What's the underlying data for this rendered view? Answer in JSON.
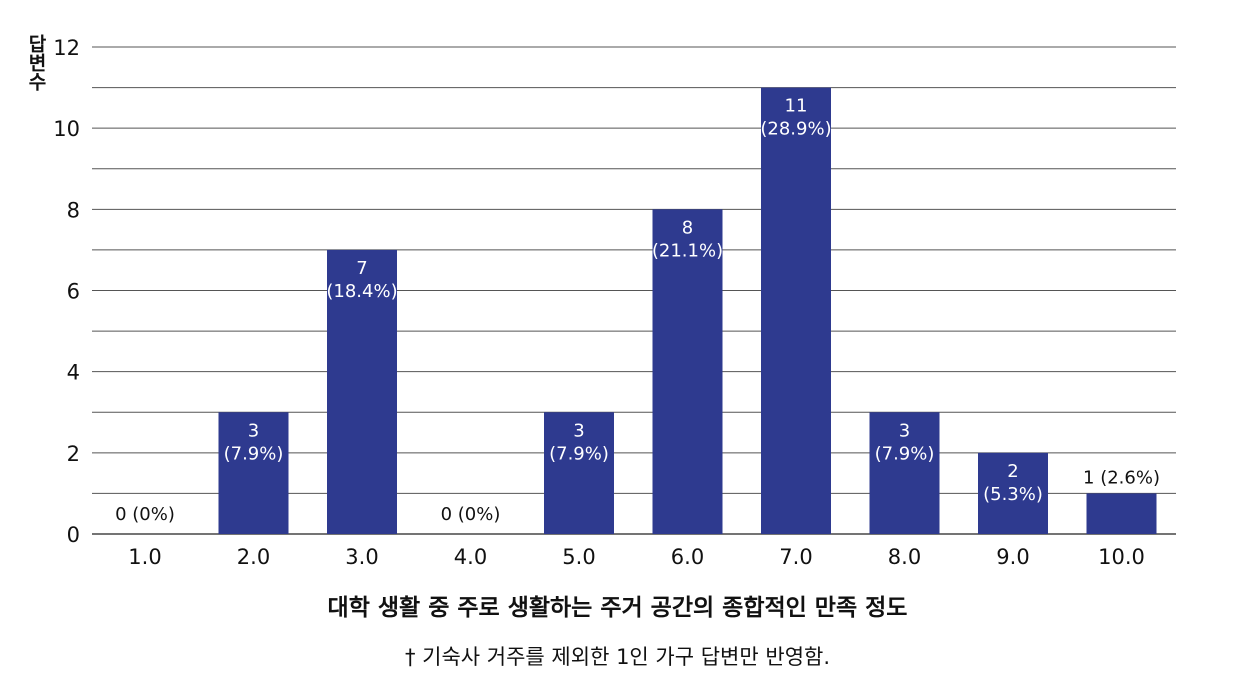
{
  "chart_data": {
    "type": "bar",
    "categories": [
      "1.0",
      "2.0",
      "3.0",
      "4.0",
      "5.0",
      "6.0",
      "7.0",
      "8.0",
      "9.0",
      "10.0"
    ],
    "values": [
      0,
      3,
      7,
      0,
      3,
      8,
      11,
      3,
      2,
      1
    ],
    "percent_labels": [
      "(0%)",
      "(7.9%)",
      "(18.4%)",
      "(0%)",
      "(7.9%)",
      "(21.1%)",
      "(28.9%)",
      "(7.9%)",
      "(5.3%)",
      "(2.6%)"
    ],
    "ylabel": "답변수",
    "xlabel": "대학 생활 중 주로 생활하는 주거 공간의 종합적인 만족 정도",
    "ylim": [
      0,
      12
    ],
    "yticks": [
      0,
      2,
      4,
      6,
      8,
      10,
      12
    ],
    "grid": true,
    "bar_color": "#2e3a8f",
    "grid_color": "#555555"
  },
  "footnote": "† 기숙사 거주를 제외한 1인 가구 답변만 반영함."
}
